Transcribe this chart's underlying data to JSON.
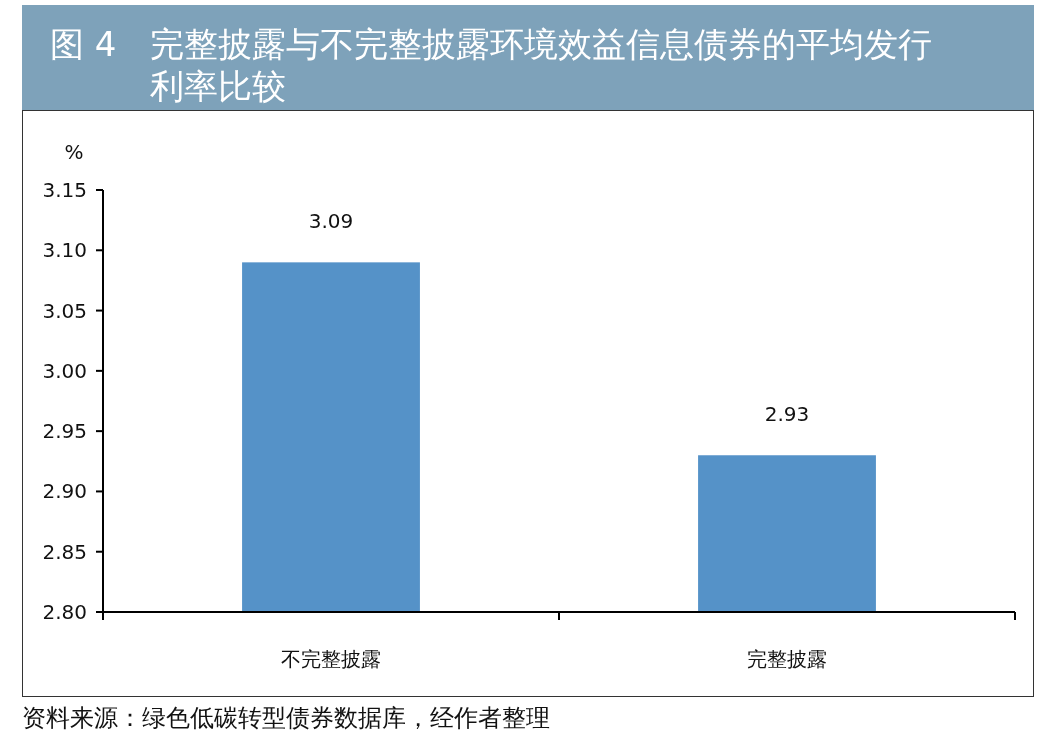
{
  "chart_data": {
    "type": "bar",
    "title": "图 4　完整披露与不完整披露环境效益信息债券的平均发行利率比较",
    "ylabel": "%",
    "categories": [
      "不完整披露",
      "完整披露"
    ],
    "values": [
      3.09,
      2.93
    ],
    "color": "#5592c8",
    "ylim": [
      2.8,
      3.15
    ],
    "yticks": [
      {
        "value": 2.8,
        "label": "2.80"
      },
      {
        "value": 2.85,
        "label": "2.85"
      },
      {
        "value": 2.9,
        "label": "2.90"
      },
      {
        "value": 2.95,
        "label": "2.95"
      },
      {
        "value": 3.0,
        "label": "3.00"
      },
      {
        "value": 3.05,
        "label": "3.05"
      },
      {
        "value": 3.1,
        "label": "3.10"
      },
      {
        "value": 3.15,
        "label": "3.15"
      }
    ],
    "data_labels": true,
    "annotations": [
      "资料来源：绿色低碳转型债券数据库，经作者整理"
    ]
  }
}
